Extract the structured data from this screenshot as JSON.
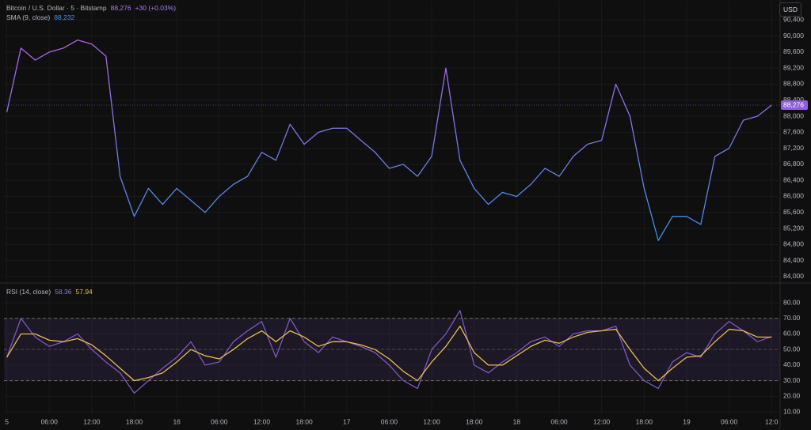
{
  "currency": "USD",
  "chart_data": [
    {
      "type": "line",
      "title": "Bitcoin / U.S. Dollar · 5 · Bitstamp",
      "last": {
        "value": 88276,
        "label": "88,276"
      },
      "change": "+30 (+0.03%)",
      "legend": [
        "SMA (9, close)",
        "88,232"
      ],
      "gradient": [
        "#b65fe6",
        "#2f95e8"
      ],
      "ylim": [
        83840,
        90860
      ],
      "yticks": [
        {
          "value": 84000,
          "label": "84,000"
        },
        {
          "value": 84400,
          "label": "84,400"
        },
        {
          "value": 84800,
          "label": "84,800"
        },
        {
          "value": 85200,
          "label": "85,200"
        },
        {
          "value": 85600,
          "label": "85,600"
        },
        {
          "value": 86000,
          "label": "86,000"
        },
        {
          "value": 86400,
          "label": "86,400"
        },
        {
          "value": 86800,
          "label": "86,800"
        },
        {
          "value": 87200,
          "label": "87,200"
        },
        {
          "value": 87600,
          "label": "87,600"
        },
        {
          "value": 88000,
          "label": "88,000"
        },
        {
          "value": 88400,
          "label": "88,400"
        },
        {
          "value": 88800,
          "label": "88,800"
        },
        {
          "value": 89200,
          "label": "89,200"
        },
        {
          "value": 89600,
          "label": "89,600"
        },
        {
          "value": 90000,
          "label": "90,000"
        },
        {
          "value": 90400,
          "label": "90,400"
        }
      ],
      "series": [
        {
          "values": [
            88100,
            89700,
            89400,
            89600,
            89700,
            89900,
            89800,
            89500,
            86500,
            85500,
            86200,
            85800,
            86200,
            85900,
            85600,
            86000,
            86300,
            86500,
            87100,
            86900,
            87800,
            87300,
            87600,
            87700,
            87700,
            87400,
            87100,
            86700,
            86800,
            86500,
            87000,
            89200,
            86900,
            86200,
            85800,
            86100,
            86000,
            86300,
            86700,
            86500,
            87000,
            87300,
            87400,
            88800,
            88000,
            86200,
            84900,
            85500,
            85500,
            85300,
            87000,
            87200,
            87900,
            88000,
            88276
          ]
        }
      ]
    },
    {
      "type": "line",
      "title": "RSI (14, close)",
      "legend": [
        "58.36",
        "57.94"
      ],
      "bands": [
        30,
        70
      ],
      "midline": 50,
      "band_color": "#7e57c2",
      "xlim": [
        -0.2,
        54.6
      ],
      "ylim": [
        8.5,
        92.7
      ],
      "yticks": [
        {
          "value": 10,
          "label": "10.00"
        },
        {
          "value": 20,
          "label": "20.00"
        },
        {
          "value": 30,
          "label": "30.00"
        },
        {
          "value": 40,
          "label": "40.00"
        },
        {
          "value": 50,
          "label": "50.00"
        },
        {
          "value": 60,
          "label": "60.00"
        },
        {
          "value": 70,
          "label": "70.00"
        },
        {
          "value": 80,
          "label": "80.00"
        }
      ],
      "xticks": [
        {
          "value": 0,
          "label": "5"
        },
        {
          "value": 3,
          "label": "06:00"
        },
        {
          "value": 6,
          "label": "12:00"
        },
        {
          "value": 9,
          "label": "18:00"
        },
        {
          "value": 12,
          "label": "16"
        },
        {
          "value": 15,
          "label": "06:00"
        },
        {
          "value": 18,
          "label": "12:00"
        },
        {
          "value": 21,
          "label": "18:00"
        },
        {
          "value": 24,
          "label": "17"
        },
        {
          "value": 27,
          "label": "06:00"
        },
        {
          "value": 30,
          "label": "12:00"
        },
        {
          "value": 33,
          "label": "18:00"
        },
        {
          "value": 36,
          "label": "18"
        },
        {
          "value": 39,
          "label": "06:00"
        },
        {
          "value": 42,
          "label": "12:00"
        },
        {
          "value": 45,
          "label": "18:00"
        },
        {
          "value": 48,
          "label": "19"
        },
        {
          "value": 51,
          "label": "06:00"
        },
        {
          "value": 54,
          "label": "12:0"
        }
      ],
      "series": [
        {
          "color": "#7e57c2",
          "values": [
            45,
            70,
            58,
            52,
            55,
            60,
            50,
            42,
            35,
            22,
            30,
            38,
            45,
            55,
            40,
            42,
            55,
            62,
            68,
            45,
            70,
            55,
            48,
            58,
            55,
            52,
            48,
            40,
            30,
            25,
            50,
            60,
            75,
            40,
            35,
            42,
            48,
            55,
            58,
            52,
            60,
            62,
            62,
            65,
            40,
            30,
            25,
            42,
            48,
            45,
            60,
            68,
            62,
            55,
            58.36
          ]
        },
        {
          "color": "#e9bd4c",
          "values": [
            45,
            60,
            60,
            56,
            55,
            57,
            53,
            46,
            38,
            30,
            32,
            35,
            42,
            50,
            46,
            44,
            50,
            57,
            62,
            55,
            62,
            58,
            52,
            55,
            55,
            53,
            50,
            44,
            36,
            30,
            42,
            52,
            65,
            48,
            40,
            40,
            46,
            52,
            56,
            54,
            58,
            61,
            62,
            63,
            50,
            38,
            30,
            38,
            45,
            46,
            55,
            63,
            62,
            58,
            57.94
          ]
        }
      ]
    }
  ]
}
